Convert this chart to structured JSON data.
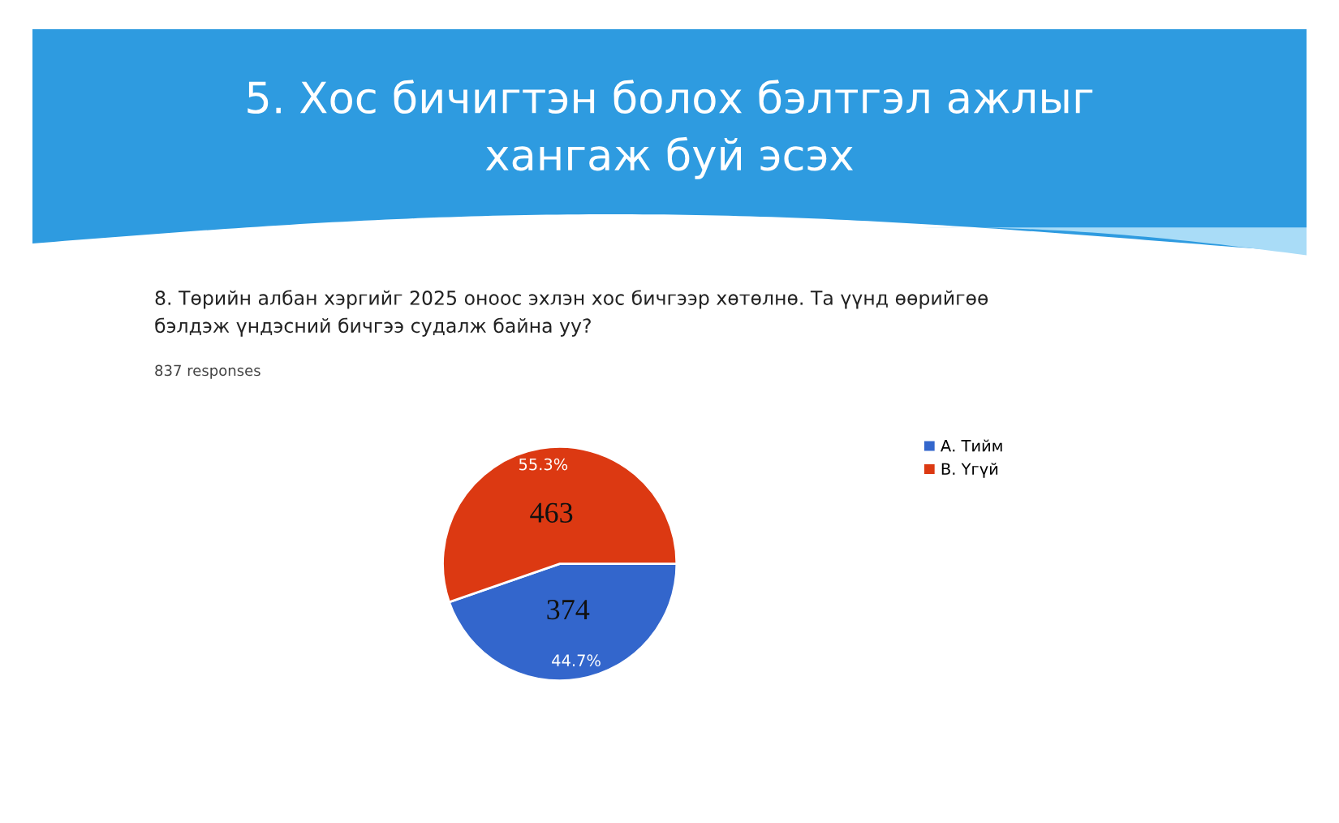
{
  "chart_data": {
    "type": "pie",
    "title": "5. Хос бичигтэн болох бэлтгэл ажлыг\nхангаж буй эсэх",
    "subtitle": "8. Төрийн албан хэргийг 2025 оноос эхлэн хос бичгээр хөтөлнө. Та үүнд өөрийгөө\nбэлдэж үндэсний бичгээ судалж байна уу?",
    "categories": [
      "А. Тийм",
      "В. Үгүй"
    ],
    "values": [
      374,
      463
    ],
    "colors": [
      "#3366cc",
      "#dc3912"
    ],
    "data_labels": true,
    "annotations": [
      "837 responses",
      {
        "text": "44.7%",
        "x": "А. Тийм"
      },
      {
        "text": "55.3%",
        "x": "В. Үгүй"
      }
    ],
    "legend": "right"
  }
}
